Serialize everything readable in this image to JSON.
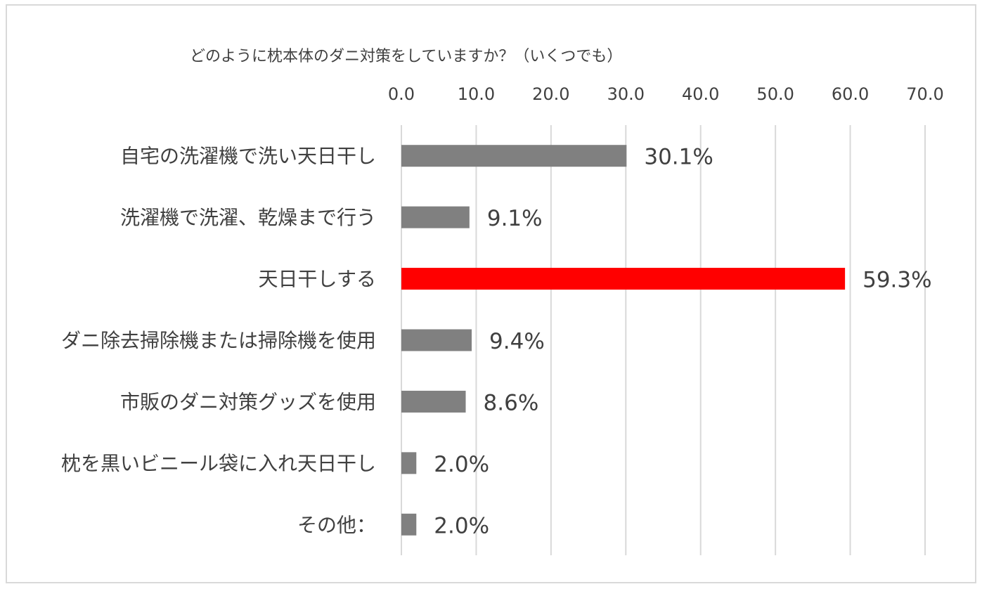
{
  "chart_data": {
    "type": "bar",
    "orientation": "horizontal",
    "title": "どのように枕本体のダニ対策をしていますか？（いくつでも）",
    "categories": [
      "自宅の洗濯機で洗い天日干し",
      "洗濯機で洗濯、乾燥まで行う",
      "天日干しする",
      "ダニ除去掃除機または掃除機を使用",
      "市販のダニ対策グッズを使用",
      "枕を黒いビニール袋に入れ天日干し",
      "その他："
    ],
    "values": [
      30.1,
      9.1,
      59.3,
      9.4,
      8.6,
      2.0,
      2.0
    ],
    "data_labels": [
      "30.1%",
      "9.1%",
      "59.3%",
      "9.4%",
      "8.6%",
      "2.0%",
      "2.0%"
    ],
    "xlim": [
      0,
      70
    ],
    "ticks": [
      "0.0",
      "10.0",
      "20.0",
      "30.0",
      "40.0",
      "50.0",
      "60.0",
      "70.0"
    ],
    "x_axis_position": "top",
    "grid": true,
    "legend": "none",
    "colors": {
      "default_bar": "#808080",
      "highlight_bar": "#ff0000",
      "highlight_index": 2,
      "gridline": "#d9d9d9",
      "text": "#404040"
    }
  }
}
